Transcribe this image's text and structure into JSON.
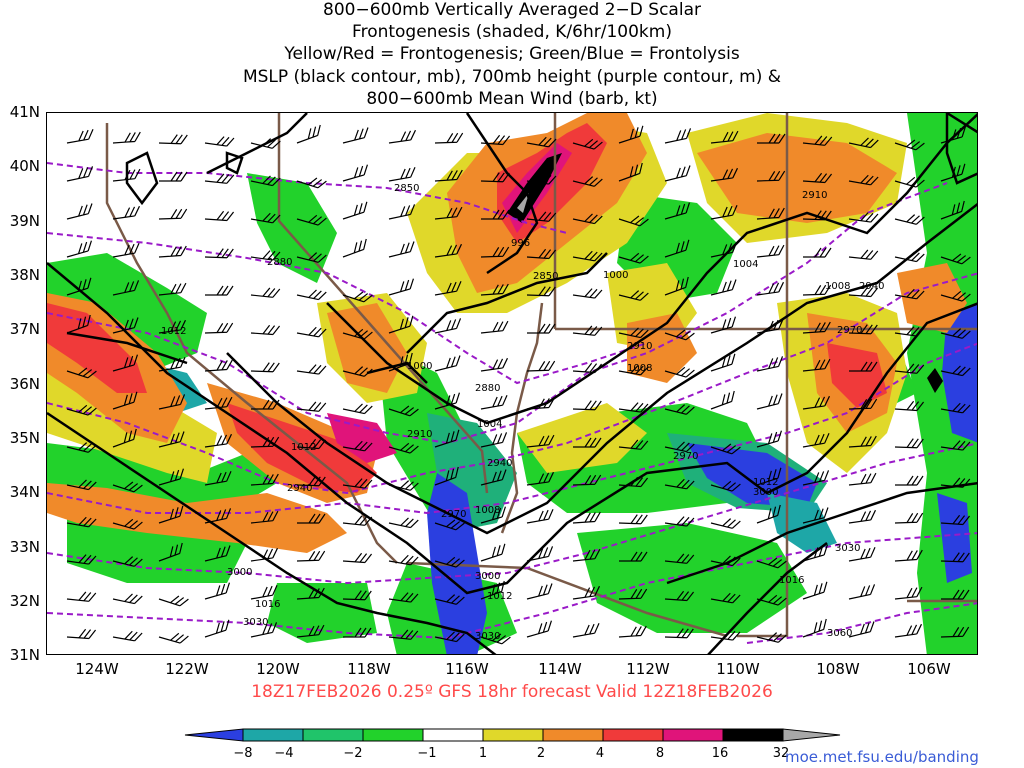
{
  "title": {
    "line1": "800−600mb Vertically Averaged 2−D Scalar",
    "line2": "Frontogenesis (shaded, K/6hr/100km)",
    "line3": "Yellow/Red = Frontogenesis;  Green/Blue = Frontolysis",
    "line4": "MSLP (black contour, mb), 700mb height (purple contour, m) &",
    "line5": "800−600mb Mean Wind (barb, kt)"
  },
  "valid_time": "18Z17FEB2026 0.25º GFS 18hr forecast Valid 12Z18FEB2026",
  "credit": "moe.met.fsu.edu/banding",
  "latitudes": [
    "41N",
    "40N",
    "39N",
    "38N",
    "37N",
    "36N",
    "35N",
    "34N",
    "33N",
    "32N",
    "31N"
  ],
  "longitudes": [
    "124W",
    "122W",
    "120W",
    "118W",
    "116W",
    "114W",
    "112W",
    "110W",
    "108W",
    "106W"
  ],
  "colorbar": {
    "labels": [
      "−8",
      "−4",
      "−2",
      "−1",
      "1",
      "2",
      "4",
      "8",
      "16",
      "32"
    ],
    "colors": [
      "#2b3fe0",
      "#1ea7a7",
      "#20c46a",
      "#22d22b",
      "#ffffff",
      "#e0d82a",
      "#f08a2a",
      "#f03a3a",
      "#e0147a",
      "#000000",
      "#a8a8a8"
    ]
  },
  "shading_colors": {
    "frontolysis_strong": "#2b3fe0",
    "frontolysis": "#22d22b",
    "frontolysis_mid": "#1fb07a",
    "frontogenesis_weak": "#e0d82a",
    "frontogenesis": "#f08a2a",
    "frontogenesis_strong": "#f03a3a",
    "frontogenesis_max": "#e0147a"
  },
  "contour_labels": {
    "mslp": [
      "996",
      "1000",
      "1000",
      "1004",
      "1004",
      "1008",
      "1008",
      "1012",
      "1012",
      "1012",
      "1012",
      "1016",
      "1016",
      "1008"
    ],
    "height_700mb": [
      "2850",
      "2850",
      "2880",
      "2880",
      "2910",
      "2910",
      "2910",
      "2940",
      "2940",
      "2940",
      "2970",
      "2970",
      "2970",
      "3000",
      "3000",
      "3000",
      "3030",
      "3030",
      "3030",
      "3060"
    ]
  }
}
